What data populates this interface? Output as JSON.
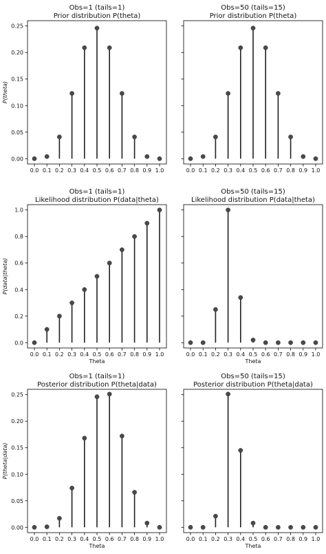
{
  "chart_data": [
    {
      "type": "stem",
      "title_line1": "Obs=1 (tails=1)",
      "title_line2": "Prior distribution P(theta)",
      "xlabel": "",
      "ylabel": "P(theta)",
      "ylim": [
        -0.01,
        0.26
      ],
      "yticks": [
        "0.00",
        "0.05",
        "0.10",
        "0.15",
        "0.20",
        "0.25"
      ],
      "ytick_values": [
        0,
        0.05,
        0.1,
        0.15,
        0.2,
        0.25
      ],
      "show_ytick_labels": true,
      "x": [
        0.0,
        0.1,
        0.2,
        0.3,
        0.4,
        0.5,
        0.6,
        0.7,
        0.8,
        0.9,
        1.0
      ],
      "y": [
        0.0,
        0.004,
        0.041,
        0.123,
        0.209,
        0.246,
        0.209,
        0.123,
        0.041,
        0.004,
        0.0
      ]
    },
    {
      "type": "stem",
      "title_line1": "Obs=50 (tails=15)",
      "title_line2": "Prior distribution P(theta)",
      "xlabel": "",
      "ylabel": "",
      "ylim": [
        -0.01,
        0.26
      ],
      "yticks": [
        "0.00",
        "0.05",
        "0.10",
        "0.15",
        "0.20",
        "0.25"
      ],
      "ytick_values": [
        0,
        0.05,
        0.1,
        0.15,
        0.2,
        0.25
      ],
      "show_ytick_labels": false,
      "x": [
        0.0,
        0.1,
        0.2,
        0.3,
        0.4,
        0.5,
        0.6,
        0.7,
        0.8,
        0.9,
        1.0
      ],
      "y": [
        0.0,
        0.004,
        0.041,
        0.123,
        0.209,
        0.246,
        0.209,
        0.123,
        0.041,
        0.004,
        0.0
      ]
    },
    {
      "type": "stem",
      "title_line1": "Obs=1 (tails=1)",
      "title_line2": "Likelihood distribution P(data|theta)",
      "xlabel": "Theta",
      "ylabel": "P(data|theta)",
      "ylim": [
        -0.04,
        1.04
      ],
      "yticks": [
        "0.0",
        "0.2",
        "0.4",
        "0.6",
        "0.8",
        "1.0"
      ],
      "ytick_values": [
        0,
        0.2,
        0.4,
        0.6,
        0.8,
        1.0
      ],
      "show_ytick_labels": true,
      "x": [
        0.0,
        0.1,
        0.2,
        0.3,
        0.4,
        0.5,
        0.6,
        0.7,
        0.8,
        0.9,
        1.0
      ],
      "y": [
        0.0,
        0.1,
        0.2,
        0.3,
        0.4,
        0.5,
        0.6,
        0.7,
        0.8,
        0.9,
        1.0
      ]
    },
    {
      "type": "stem",
      "title_line1": "Obs=50 (tails=15)",
      "title_line2": "Likelihood distribution P(data|theta)",
      "xlabel": "Theta",
      "ylabel": "",
      "ylim": [
        -0.04,
        1.04
      ],
      "yticks": [
        "0.0",
        "0.2",
        "0.4",
        "0.6",
        "0.8",
        "1.0"
      ],
      "ytick_values": [
        0,
        0.2,
        0.4,
        0.6,
        0.8,
        1.0
      ],
      "show_ytick_labels": false,
      "x": [
        0.0,
        0.1,
        0.2,
        0.3,
        0.4,
        0.5,
        0.6,
        0.7,
        0.8,
        0.9,
        1.0
      ],
      "y": [
        0.0,
        0.0,
        0.25,
        1.0,
        0.34,
        0.02,
        0.0,
        0.0,
        0.0,
        0.0,
        0.0
      ]
    },
    {
      "type": "stem",
      "title_line1": "Obs=1 (tails=1)",
      "title_line2": "Posterior distribution P(theta|data)",
      "xlabel": "Theta",
      "ylabel": "P(theta|data)",
      "ylim": [
        -0.01,
        0.26
      ],
      "yticks": [
        "0.00",
        "0.05",
        "0.10",
        "0.15",
        "0.20",
        "0.25"
      ],
      "ytick_values": [
        0,
        0.05,
        0.1,
        0.15,
        0.2,
        0.25
      ],
      "show_ytick_labels": true,
      "x": [
        0.0,
        0.1,
        0.2,
        0.3,
        0.4,
        0.5,
        0.6,
        0.7,
        0.8,
        0.9,
        1.0
      ],
      "y": [
        0.0,
        0.001,
        0.017,
        0.074,
        0.168,
        0.246,
        0.251,
        0.172,
        0.066,
        0.008,
        0.0
      ]
    },
    {
      "type": "stem",
      "title_line1": "Obs=50 (tails=15)",
      "title_line2": "Posterior distribution P(theta|data)",
      "xlabel": "Theta",
      "ylabel": "",
      "ylim": [
        -0.01,
        0.26
      ],
      "yticks": [
        "0.00",
        "0.05",
        "0.10",
        "0.15",
        "0.20",
        "0.25"
      ],
      "ytick_values": [
        0,
        0.05,
        0.1,
        0.15,
        0.2,
        0.25
      ],
      "show_ytick_labels": false,
      "x": [
        0.0,
        0.1,
        0.2,
        0.3,
        0.4,
        0.5,
        0.6,
        0.7,
        0.8,
        0.9,
        1.0
      ],
      "y": [
        0.0,
        0.0,
        0.021,
        0.251,
        0.145,
        0.008,
        0.0,
        0.0,
        0.0,
        0.0,
        0.0
      ]
    }
  ],
  "style": {
    "stem_color": "#1f1f1f",
    "marker_color": "#4a4a4a",
    "axis_color": "#000000"
  }
}
